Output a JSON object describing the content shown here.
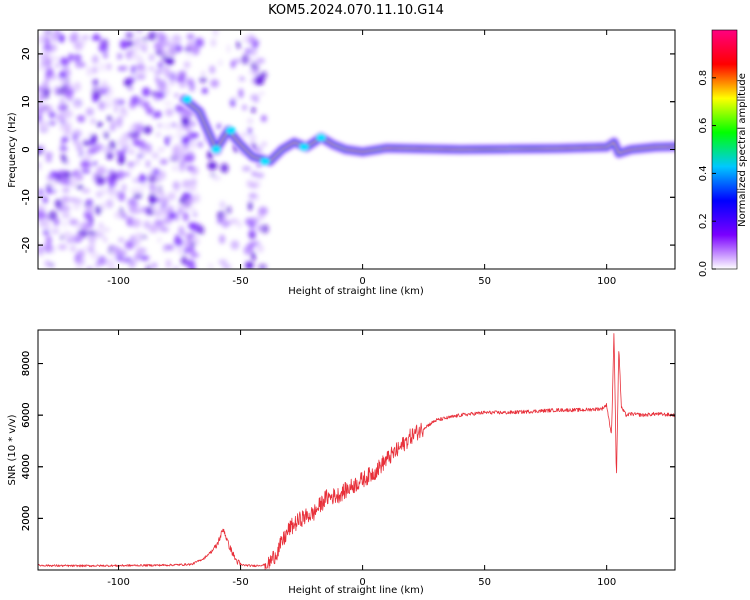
{
  "title": "KOM5.2024.070.11.10.G14",
  "chart_data": [
    {
      "type": "heatmap",
      "xlabel": "Height of straight line (km)",
      "ylabel": "Frequency (Hz)",
      "xlim": [
        -133,
        128
      ],
      "ylim": [
        -25,
        25
      ],
      "x_ticks": [
        -100,
        -50,
        0,
        50,
        100
      ],
      "y_ticks": [
        -20,
        -10,
        0,
        10,
        20
      ],
      "x_tick_labels": [
        "-100",
        "-50",
        "0",
        "50",
        "100"
      ],
      "y_tick_labels": [
        "-20",
        "-10",
        "0",
        "10",
        "20"
      ],
      "colorbar": {
        "label": "Normalized spectral amplitude",
        "range": [
          0,
          1
        ],
        "ticks": [
          0.0,
          0.2,
          0.4,
          0.6,
          0.8
        ],
        "tick_labels": [
          "0.0",
          "0.2",
          "0.4",
          "0.6",
          "0.8"
        ],
        "colormap": "rainbow",
        "stops": [
          "#ffffff",
          "#7a00ff",
          "#0000ff",
          "#00c8ff",
          "#00ff00",
          "#ffff00",
          "#ff0000",
          "#ff0080"
        ]
      },
      "noise_region": [
        -133,
        -40
      ],
      "ridge": [
        {
          "x": -73,
          "y": 10.5
        },
        {
          "x": -67,
          "y": 8
        },
        {
          "x": -60,
          "y": 0
        },
        {
          "x": -55,
          "y": 4
        },
        {
          "x": -50,
          "y": 1
        },
        {
          "x": -45,
          "y": -1.5
        },
        {
          "x": -38,
          "y": -2.5
        },
        {
          "x": -33,
          "y": 0
        },
        {
          "x": -28,
          "y": 1.5
        },
        {
          "x": -23,
          "y": 0.5
        },
        {
          "x": -17,
          "y": 2.5
        },
        {
          "x": -12,
          "y": 1
        },
        {
          "x": -7,
          "y": 0
        },
        {
          "x": 0,
          "y": -0.5
        },
        {
          "x": 10,
          "y": 0.3
        },
        {
          "x": 40,
          "y": 0
        },
        {
          "x": 80,
          "y": 0.2
        },
        {
          "x": 100,
          "y": 0.5
        },
        {
          "x": 103,
          "y": 1.5
        },
        {
          "x": 105,
          "y": -0.8
        },
        {
          "x": 110,
          "y": 0
        },
        {
          "x": 120,
          "y": 0.5
        },
        {
          "x": 128,
          "y": 0.6
        }
      ]
    },
    {
      "type": "line",
      "xlabel": "Height of straight line (km)",
      "ylabel": "SNR (10 * v/v)",
      "xlim": [
        -133,
        128
      ],
      "ylim": [
        0,
        9300
      ],
      "x_ticks": [
        -100,
        -50,
        0,
        50,
        100
      ],
      "y_ticks": [
        2000,
        4000,
        6000,
        8000
      ],
      "x_tick_labels": [
        "-100",
        "-50",
        "0",
        "50",
        "100"
      ],
      "y_tick_labels": [
        "2000",
        "4000",
        "6000",
        "8000"
      ],
      "color": "#e8303a",
      "series": [
        {
          "x": [
            -133,
            -120,
            -100,
            -80,
            -70,
            -65,
            -60,
            -57,
            -55,
            -52,
            -50,
            -45,
            -40,
            -38,
            -35,
            -30,
            -25,
            -20,
            -15,
            -10,
            -5,
            0,
            5,
            10,
            15,
            20,
            25,
            30,
            40,
            50,
            60,
            70,
            80,
            90,
            98,
            100,
            102,
            103,
            104,
            105,
            106,
            108,
            110,
            115,
            120,
            128
          ],
          "y": [
            180,
            160,
            170,
            190,
            220,
            450,
            900,
            1600,
            1000,
            400,
            200,
            160,
            200,
            300,
            700,
            1600,
            2000,
            2200,
            2800,
            2900,
            3200,
            3500,
            3800,
            4300,
            4700,
            5200,
            5500,
            5800,
            6000,
            6100,
            6100,
            6150,
            6200,
            6200,
            6250,
            6400,
            5200,
            9300,
            3500,
            8700,
            6300,
            6000,
            6050,
            6000,
            6050,
            6000
          ]
        }
      ]
    }
  ]
}
